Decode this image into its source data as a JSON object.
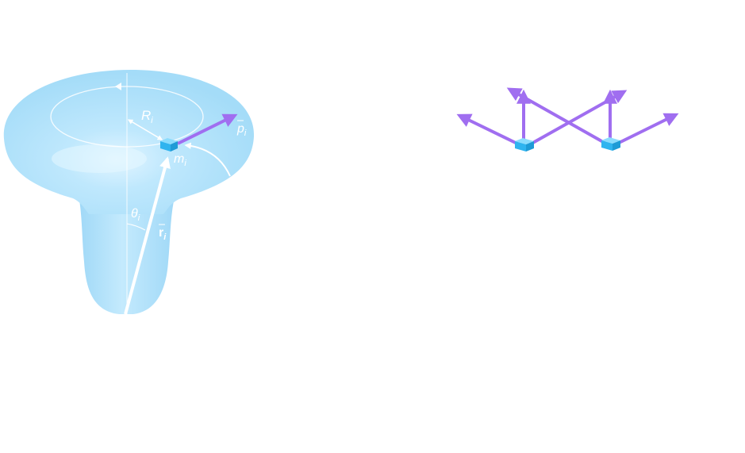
{
  "left_figure": {
    "labels": {
      "radius": "R",
      "radius_sub": "i",
      "mass": "m",
      "mass_sub": "i",
      "angle": "θ",
      "angle_sub": "i",
      "position": "r",
      "position_sub": "i",
      "momentum": "p",
      "momentum_sub": "i"
    }
  },
  "colors": {
    "body_fill": "#a9defa",
    "body_light": "#d4efff",
    "guide_lines": "#ffffff",
    "momentum_arrow": "#a06ef0",
    "particle": "#2fb4ef",
    "particle_top": "#7fd6fb"
  }
}
